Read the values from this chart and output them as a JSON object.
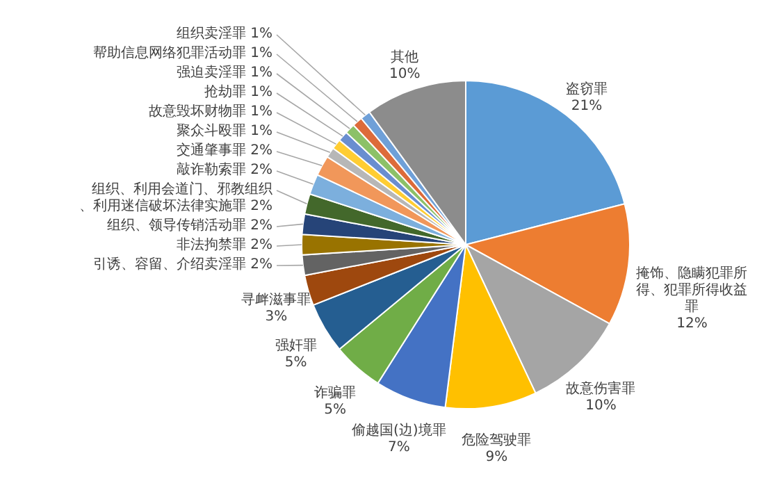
{
  "chart_data": {
    "type": "pie",
    "categories": [
      "盗窃罪",
      "掩饰、隐瞒犯罪所得、犯罪所得收益罪",
      "故意伤害罪",
      "危险驾驶罪",
      "偷越国(边)境罪",
      "诈骗罪",
      "强奸罪",
      "寻衅滋事罪",
      "引诱、容留、介绍卖淫罪",
      "非法拘禁罪",
      "组织、领导传销活动罪",
      "组织、利用会道门、邪教组织、利用迷信破坏法律实施罪",
      "敲诈勒索罪",
      "交通肇事罪",
      "聚众斗殴罪",
      "故意毁坏财物罪",
      "抢劫罪",
      "强迫卖淫罪",
      "帮助信息网络犯罪活动罪",
      "组织卖淫罪",
      "其他"
    ],
    "values": [
      21,
      12,
      10,
      9,
      7,
      5,
      5,
      3,
      2,
      2,
      2,
      2,
      2,
      2,
      1,
      1,
      1,
      1,
      1,
      1,
      10
    ],
    "value_labels": [
      "21%",
      "12%",
      "10%",
      "9%",
      "7%",
      "5%",
      "5%",
      "3%",
      "2%",
      "2%",
      "2%",
      "2%",
      "2%",
      "2%",
      "1%",
      "1%",
      "1%",
      "1%",
      "1%",
      "1%",
      "10%"
    ],
    "colors": [
      "#5b9bd5",
      "#ed7d31",
      "#a5a5a5",
      "#ffc000",
      "#4472c4",
      "#70ad47",
      "#255e91",
      "#9e480e",
      "#636363",
      "#997300",
      "#264478",
      "#43682b",
      "#7cafdd",
      "#f1975a",
      "#b7b7b7",
      "#ffcd33",
      "#698ed0",
      "#8cc168",
      "#dd6b3a",
      "#6fa0d8",
      "#8c8c8c"
    ]
  }
}
